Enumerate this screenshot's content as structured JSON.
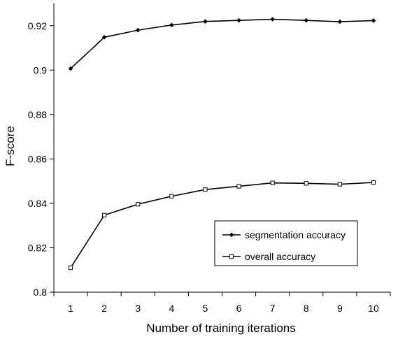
{
  "chart_data": {
    "type": "line",
    "title": "",
    "xlabel": "Number of training iterations",
    "ylabel": "F-score",
    "x": [
      1,
      2,
      3,
      4,
      5,
      6,
      7,
      8,
      9,
      10
    ],
    "xticks": [
      "1",
      "2",
      "3",
      "4",
      "5",
      "6",
      "7",
      "8",
      "9",
      "10"
    ],
    "ylim": [
      0.8,
      0.93
    ],
    "yticks": [
      0.8,
      0.82,
      0.84,
      0.86,
      0.88,
      0.9,
      0.92
    ],
    "ytick_labels": [
      "0.8",
      "0.82",
      "0.84",
      "0.86",
      "0.88",
      "0.9",
      "0.92"
    ],
    "grid": false,
    "legend_position": "lower-right",
    "series": [
      {
        "name": "segmentation accuracy",
        "marker": "diamond",
        "color": "#000000",
        "values": [
          0.9007,
          0.9148,
          0.918,
          0.9203,
          0.9219,
          0.9224,
          0.9229,
          0.9224,
          0.9218,
          0.9223
        ]
      },
      {
        "name": "overall accuracy",
        "marker": "square",
        "color": "#000000",
        "values": [
          0.811,
          0.8347,
          0.8396,
          0.8432,
          0.8462,
          0.8477,
          0.8492,
          0.849,
          0.8486,
          0.8494
        ]
      }
    ]
  }
}
